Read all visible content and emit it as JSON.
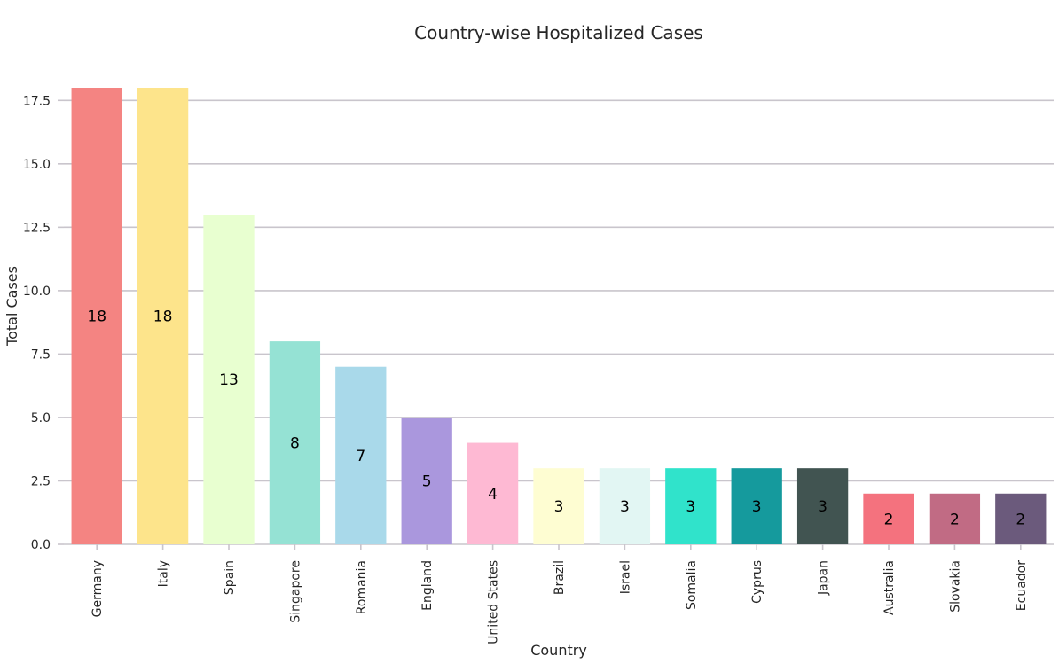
{
  "chart_data": {
    "type": "bar",
    "title": "Country-wise Hospitalized Cases",
    "xlabel": "Country",
    "ylabel": "Total Cases",
    "categories": [
      "Germany",
      "Italy",
      "Spain",
      "Singapore",
      "Romania",
      "England",
      "United States",
      "Brazil",
      "Israel",
      "Somalia",
      "Cyprus",
      "Japan",
      "Australia",
      "Slovakia",
      "Ecuador"
    ],
    "values": [
      18,
      18,
      13,
      8,
      7,
      5,
      4,
      3,
      3,
      3,
      3,
      3,
      2,
      2,
      2
    ],
    "data_labels": [
      "18",
      "18",
      "13",
      "8",
      "7",
      "5",
      "4",
      "3",
      "3",
      "3",
      "3",
      "3",
      "2",
      "2",
      "2"
    ],
    "colors": [
      "#f48482",
      "#fde48b",
      "#e8ffd0",
      "#95e2d4",
      "#a9d9ea",
      "#aa97dd",
      "#feb9d3",
      "#fefdd2",
      "#e2f6f3",
      "#30e3cb",
      "#159a9d",
      "#415451",
      "#f4727e",
      "#c16b84",
      "#6b5a7c"
    ],
    "ylim": [
      0,
      18
    ],
    "yticks": [
      0,
      2.5,
      5,
      7.5,
      10,
      12.5,
      15,
      17.5
    ],
    "ytick_labels": [
      "0.0",
      "2.5",
      "5.0",
      "7.5",
      "10.0",
      "12.5",
      "15.0",
      "17.5"
    ],
    "grid": true,
    "legend": false
  }
}
